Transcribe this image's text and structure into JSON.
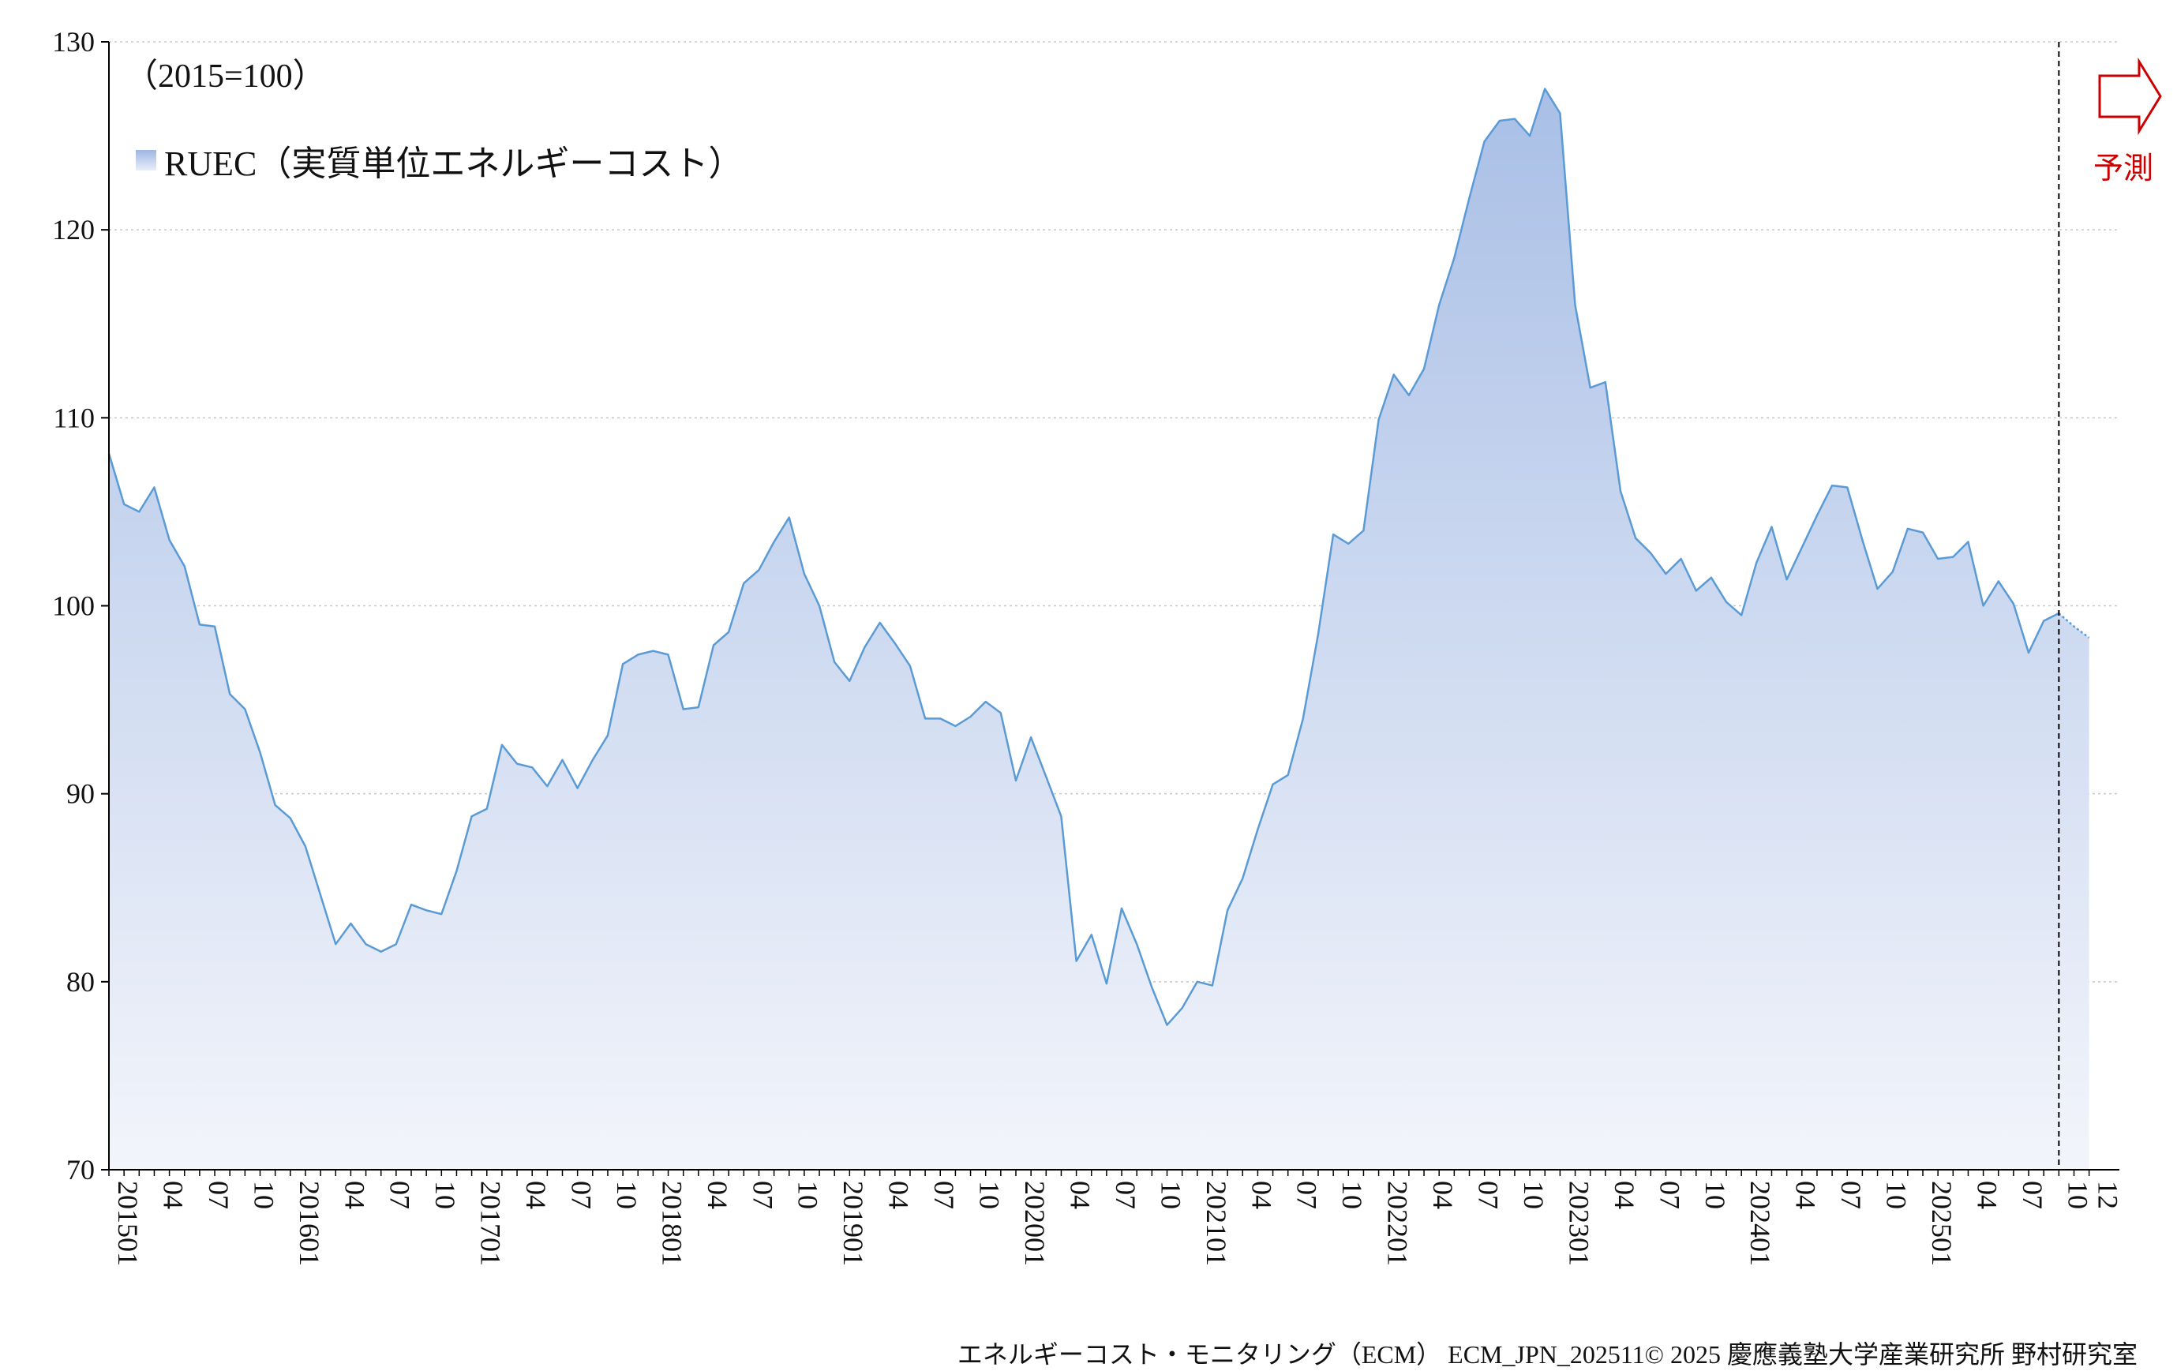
{
  "chart_data": {
    "type": "area",
    "unit_label": "（2015=100）",
    "ylim": [
      70,
      130
    ],
    "yticks": [
      70,
      80,
      90,
      100,
      110,
      120,
      130
    ],
    "grid": true,
    "legend_position": "top-left",
    "series": [
      {
        "name": "RUEC（実質単位エネルギーコスト）",
        "color": "#5b9bd5",
        "fill_top": "#a9bfe6",
        "fill_bottom": "#f3f5fb",
        "start": "2015-01",
        "values": [
          108.1,
          105.4,
          105.0,
          106.3,
          103.5,
          102.1,
          99.0,
          98.9,
          95.3,
          94.5,
          92.2,
          89.4,
          88.7,
          87.2,
          84.6,
          82.0,
          83.1,
          82.0,
          81.6,
          82.0,
          84.1,
          83.8,
          83.6,
          85.9,
          88.8,
          89.2,
          92.6,
          91.6,
          91.4,
          90.4,
          91.8,
          90.3,
          91.8,
          93.1,
          96.9,
          97.4,
          97.6,
          97.4,
          94.5,
          94.6,
          97.9,
          98.6,
          101.2,
          101.9,
          103.4,
          104.7,
          101.7,
          100.0,
          97.0,
          96.0,
          97.8,
          99.1,
          98.0,
          96.8,
          94.0,
          94.0,
          93.6,
          94.1,
          94.9,
          94.3,
          90.7,
          93.0,
          90.9,
          88.8,
          81.1,
          82.5,
          79.9,
          83.9,
          82.0,
          79.7,
          77.7,
          78.6,
          80.0,
          79.8,
          83.8,
          85.5,
          88.1,
          90.5,
          91.0,
          94.0,
          98.5,
          103.8,
          103.3,
          104.0,
          109.9,
          112.3,
          111.2,
          112.6,
          116.0,
          118.5,
          121.7,
          124.7,
          125.8,
          125.9,
          125.0,
          127.5,
          126.2,
          116.0,
          111.6,
          111.9,
          106.1,
          103.6,
          102.8,
          101.7,
          102.5,
          100.8,
          101.5,
          100.2,
          99.5,
          102.3,
          104.2,
          101.4,
          103.1,
          104.8,
          106.4,
          106.3,
          103.5,
          100.9,
          101.8,
          104.1,
          103.9,
          102.5,
          102.6,
          103.4,
          100.0,
          101.3,
          100.1,
          97.5,
          99.2,
          99.6
        ],
        "forecast_values": [
          99.6,
          98.9,
          98.3
        ]
      }
    ],
    "x_labels": [
      "201501",
      "04",
      "07",
      "10",
      "201601",
      "04",
      "07",
      "10",
      "201701",
      "04",
      "07",
      "10",
      "201801",
      "04",
      "07",
      "10",
      "201901",
      "04",
      "07",
      "10",
      "202001",
      "04",
      "07",
      "10",
      "202101",
      "04",
      "07",
      "10",
      "202201",
      "04",
      "07",
      "10",
      "202301",
      "04",
      "07",
      "10",
      "202401",
      "04",
      "07",
      "10",
      "202501",
      "04",
      "07",
      "10",
      "12"
    ],
    "forecast": {
      "label": "予測",
      "start_index": 129,
      "color": "#cc0000"
    }
  },
  "footer": {
    "text": "エネルギーコスト・モニタリング（ECM） ECM_JPN_202511© 2025 慶應義塾大学産業研究所 野村研究室"
  }
}
